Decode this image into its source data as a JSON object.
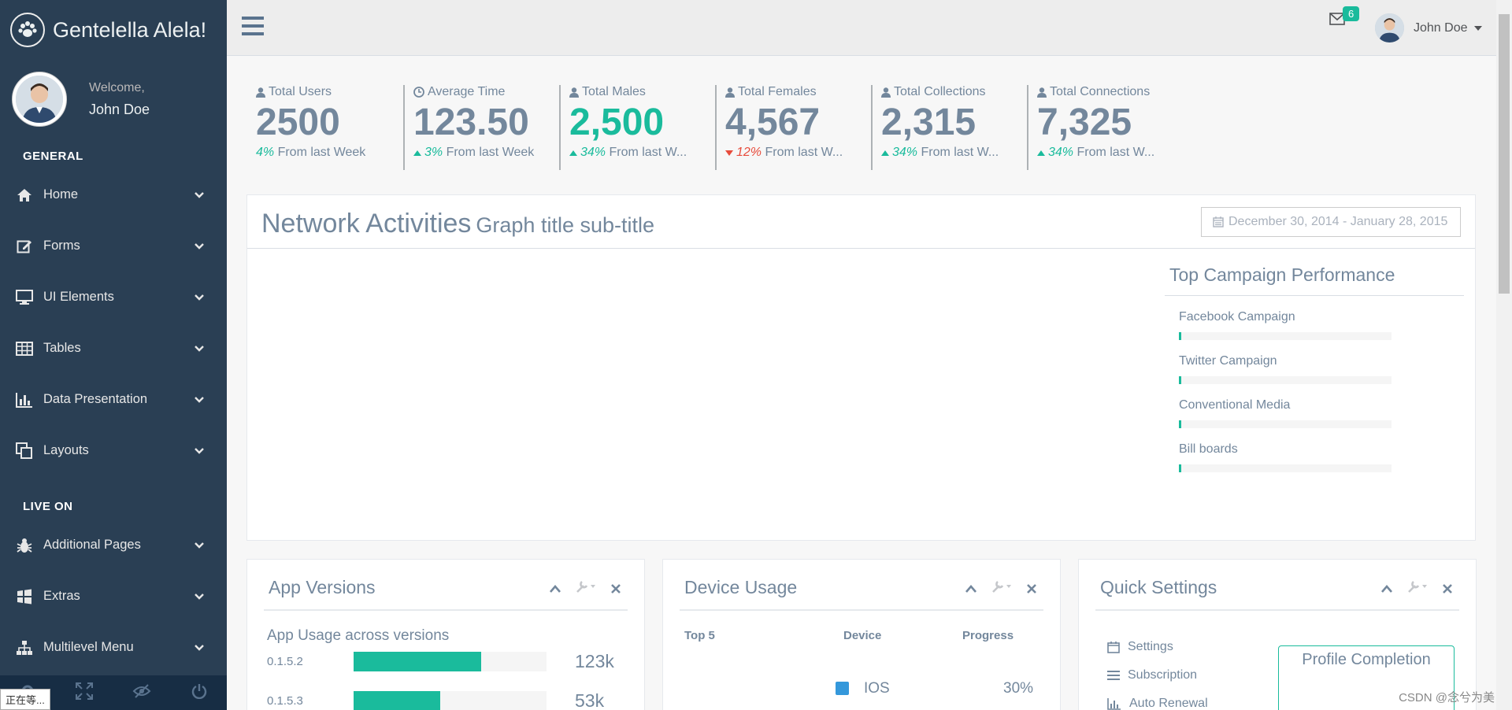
{
  "brand": {
    "title": "Gentelella Alela!"
  },
  "profile": {
    "welcome": "Welcome,",
    "name": "John Doe"
  },
  "sidebar": {
    "general_title": "GENERAL",
    "general_items": [
      {
        "label": "Home",
        "icon": "home-icon"
      },
      {
        "label": "Forms",
        "icon": "edit-icon"
      },
      {
        "label": "UI Elements",
        "icon": "desktop-icon"
      },
      {
        "label": "Tables",
        "icon": "table-icon"
      },
      {
        "label": "Data Presentation",
        "icon": "bar-chart-icon"
      },
      {
        "label": "Layouts",
        "icon": "clone-icon"
      }
    ],
    "live_title": "LIVE ON",
    "live_items": [
      {
        "label": "Additional Pages",
        "icon": "bug-icon"
      },
      {
        "label": "Extras",
        "icon": "windows-icon"
      },
      {
        "label": "Multilevel Menu",
        "icon": "sitemap-icon"
      }
    ],
    "loading": "正在等..."
  },
  "topnav": {
    "mail_count": "6",
    "user_name": "John Doe"
  },
  "tiles": [
    {
      "label": "Total Users",
      "count": "2500",
      "pct": "4%",
      "suffix": " From last Week",
      "trend": "none",
      "count_color": "default"
    },
    {
      "label": "Average Time",
      "count": "123.50",
      "pct": "3%",
      "suffix": " From last Week",
      "trend": "up",
      "count_color": "default"
    },
    {
      "label": "Total Males",
      "count": "2,500",
      "pct": "34%",
      "suffix": " From last W...",
      "trend": "up",
      "count_color": "green"
    },
    {
      "label": "Total Females",
      "count": "4,567",
      "pct": "12%",
      "suffix": " From last W...",
      "trend": "down",
      "count_color": "default"
    },
    {
      "label": "Total Collections",
      "count": "2,315",
      "pct": "34%",
      "suffix": " From last W...",
      "trend": "up",
      "count_color": "default"
    },
    {
      "label": "Total Connections",
      "count": "7,325",
      "pct": "34%",
      "suffix": " From last W...",
      "trend": "up",
      "count_color": "default"
    }
  ],
  "network": {
    "title": "Network Activities",
    "subtitle": "Graph title sub-title",
    "date_range": "December 30, 2014 - January 28, 2015"
  },
  "campaign": {
    "title": "Top Campaign Performance",
    "items": [
      {
        "label": "Facebook Campaign",
        "progress": 0.01
      },
      {
        "label": "Twitter Campaign",
        "progress": 0.01
      },
      {
        "label": "Conventional Media",
        "progress": 0.01
      },
      {
        "label": "Bill boards",
        "progress": 0.01
      }
    ]
  },
  "app_versions": {
    "title": "App Versions",
    "subtitle": "App Usage across versions",
    "rows": [
      {
        "version": "0.1.5.2",
        "value": "123k",
        "progress": 0.66
      },
      {
        "version": "0.1.5.3",
        "value": "53k",
        "progress": 0.45
      }
    ]
  },
  "device_usage": {
    "title": "Device Usage",
    "headers": {
      "top": "Top 5",
      "device": "Device",
      "progress": "Progress"
    },
    "rows": [
      {
        "device": "IOS",
        "progress": "30%",
        "color": "#3498DB"
      }
    ]
  },
  "quick_settings": {
    "title": "Quick Settings",
    "items": [
      {
        "label": "Settings",
        "icon": "calendar-icon"
      },
      {
        "label": "Subscription",
        "icon": "bars-icon"
      },
      {
        "label": "Auto Renewal",
        "icon": "bar-chart-icon"
      }
    ],
    "profile_completion": "Profile Completion"
  },
  "watermark": "CSDN @念兮为美"
}
